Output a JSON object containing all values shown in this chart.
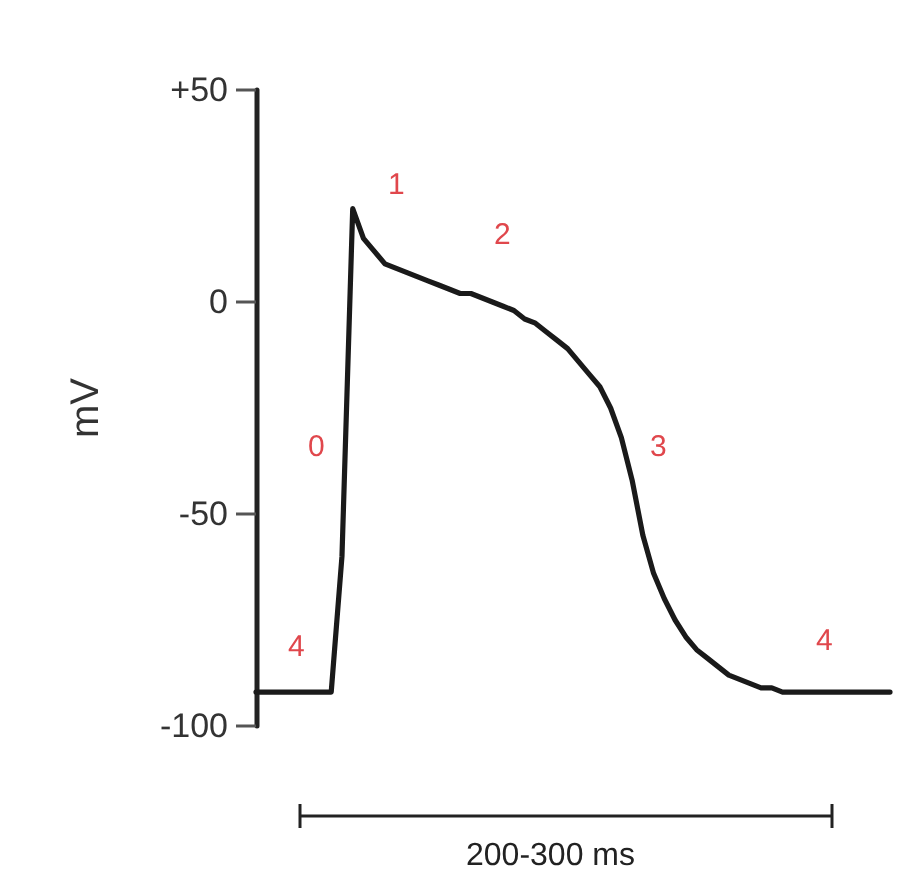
{
  "chart_data": {
    "type": "line",
    "ylabel": "mV",
    "xlabel": "200-300 ms",
    "categories": [
      null,
      null,
      null,
      null,
      null,
      null,
      null,
      null,
      null,
      null,
      null,
      null,
      null,
      null,
      null,
      null,
      null,
      null,
      null,
      null,
      null,
      null,
      null,
      null,
      null,
      null,
      null,
      null,
      null,
      null,
      null,
      null,
      null,
      null,
      null,
      null,
      null,
      null,
      null,
      null,
      null,
      null,
      null,
      null,
      null,
      null,
      null,
      null,
      null,
      null,
      null,
      null,
      null,
      null,
      null,
      null,
      null,
      null,
      null,
      null
    ],
    "series": [
      {
        "color": "#1a1a1a",
        "values": [
          -92,
          -92,
          -92,
          -92,
          -92,
          -92,
          -92,
          -92,
          -60,
          22,
          15,
          12,
          9,
          8,
          7,
          6,
          5,
          4,
          3,
          2,
          2,
          1,
          0,
          -1,
          -2,
          -4,
          -5,
          -7,
          -9,
          -11,
          -14,
          -17,
          -20,
          -25,
          -32,
          -42,
          -55,
          -64,
          -70,
          -75,
          -79,
          -82,
          -84,
          -86,
          -88,
          -89,
          -90,
          -91,
          -91,
          -92,
          -92,
          -92,
          -92,
          -92,
          -92,
          -92,
          -92,
          -92,
          -92,
          -92
        ]
      }
    ],
    "ylim": [
      -100,
      50
    ],
    "yticks": [
      {
        "value": 50,
        "label": "+50"
      },
      0,
      -50,
      -100
    ],
    "tick_labels": "y",
    "grid": false,
    "line_style": "solid",
    "annotations": [
      "4",
      "0",
      "1",
      "2",
      "3",
      "4"
    ]
  }
}
